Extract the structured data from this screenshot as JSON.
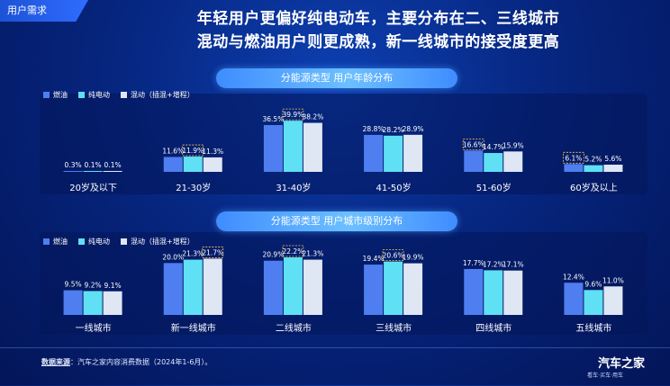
{
  "tag": "用户需求",
  "headline": {
    "line1": "年轻用户更偏好纯电动车，主要分布在二、三线城市",
    "line2": "混动与燃油用户则更成熟，新一线城市的接受度更高"
  },
  "colors": {
    "fuel": "#4f7ef0",
    "ev": "#5fe0f4",
    "hybrid": "#dfe6f4",
    "highlight": "#ffc94a"
  },
  "legend": [
    "燃油",
    "纯电动",
    "混动（插混+增程）"
  ],
  "footer": {
    "source_key": "数据来源",
    "source_text": "：汽车之家内容消费数据（2024年1-6月）。",
    "logo": "汽车之家",
    "logo_sub": "看车·买车·用车"
  },
  "chart_data": [
    {
      "type": "bar",
      "title": "分能源类型 用户年龄分布",
      "categories": [
        "20岁及以下",
        "21-30岁",
        "31-40岁",
        "41-50岁",
        "51-60岁",
        "60岁及以上"
      ],
      "series": [
        {
          "name": "燃油",
          "values": [
            0.3,
            11.6,
            36.5,
            28.8,
            16.6,
            6.1
          ],
          "labels": [
            "0.3%",
            "11.6%",
            "36.5%",
            "28.8%",
            "16.6%",
            "6.1%"
          ]
        },
        {
          "name": "纯电动",
          "values": [
            0.1,
            11.9,
            39.9,
            28.2,
            14.7,
            5.2
          ],
          "labels": [
            "0.1%",
            "11.9%",
            "39.9%",
            "28.2%",
            "14.7%",
            "5.2%"
          ]
        },
        {
          "name": "混动（插混+增程）",
          "values": [
            0.1,
            11.3,
            38.2,
            28.9,
            15.9,
            5.6
          ],
          "labels": [
            "0.1%",
            "11.3%",
            "38.2%",
            "28.9%",
            "15.9%",
            "5.6%"
          ]
        }
      ],
      "highlighted": [
        [
          1,
          1
        ],
        [
          2,
          1
        ],
        [
          4,
          0
        ],
        [
          5,
          0
        ]
      ],
      "ylim": [
        0,
        40
      ]
    },
    {
      "type": "bar",
      "title": "分能源类型 用户城市级别分布",
      "categories": [
        "一线城市",
        "新一线城市",
        "二线城市",
        "三线城市",
        "四线城市",
        "五线城市"
      ],
      "series": [
        {
          "name": "燃油",
          "values": [
            9.5,
            20.0,
            20.9,
            19.4,
            17.7,
            12.4
          ],
          "labels": [
            "9.5%",
            "20.0%",
            "20.9%",
            "19.4%",
            "17.7%",
            "12.4%"
          ]
        },
        {
          "name": "纯电动",
          "values": [
            9.2,
            21.3,
            22.2,
            20.6,
            17.2,
            9.6
          ],
          "labels": [
            "9.2%",
            "21.3%",
            "22.2%",
            "20.6%",
            "17.2%",
            "9.6%"
          ]
        },
        {
          "name": "混动（插混+增程）",
          "values": [
            9.1,
            21.7,
            21.3,
            19.9,
            17.1,
            11.0
          ],
          "labels": [
            "9.1%",
            "21.7%",
            "21.3%",
            "19.9%",
            "17.1%",
            "11.0%"
          ]
        }
      ],
      "highlighted": [
        [
          1,
          2
        ],
        [
          2,
          1
        ],
        [
          3,
          1
        ]
      ],
      "ylim": [
        0,
        22.2
      ]
    }
  ]
}
